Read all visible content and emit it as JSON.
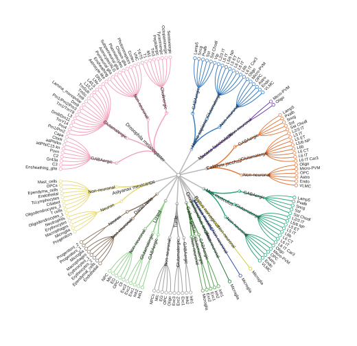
{
  "tree": {
    "clades": [
      {
        "name": "Homo sapiens",
        "color": "#3b7dc4",
        "groups": [
          {
            "name": "GABAergic",
            "leaves": [
              "Lamp5",
              "Sncg",
              "Pvalb",
              "Sst",
              "Sst Chodl",
              "Vip"
            ]
          },
          {
            "name": "Glutamatergic",
            "leaves": [
              "L2/3 IT",
              "L5 IT",
              "L5/6 NP",
              "L5 ET",
              "L6 CT",
              "L6 IT",
              "L6b",
              "L6 IT Car3"
            ]
          },
          {
            "name": "Non-neuronal",
            "leaves": [
              "Oligo",
              "Micro-PVM",
              "OPC",
              "Astro",
              "Endo",
              "VLMC"
            ]
          }
        ]
      },
      {
        "name": "Macaca fascicularis",
        "color": "#6b3fa2",
        "groups": [
          {
            "name": "Non-neuronal",
            "leaves": [
              "Micro-PVM",
              "Oligo"
            ]
          }
        ]
      },
      {
        "name": "Callithrix jacchus",
        "color": "#e27a3e",
        "groups": [
          {
            "name": "GABAergic",
            "leaves": [
              "Lamp5",
              "Pvalb",
              "Sncg",
              "Sst",
              "Sst Chodl"
            ]
          },
          {
            "name": "Glutamatergic",
            "leaves": [
              "L2/3 IT",
              "L5 IT",
              "L5 ET",
              "L5/6 NP",
              "L6b",
              "L6 CT",
              "L6 IT",
              "L6 IT Car3"
            ]
          },
          {
            "name": "Non-neuronal",
            "leaves": [
              "Oligo",
              "Micro-PVM",
              "OPC",
              "Astro",
              "Endo",
              "VLMC"
            ]
          }
        ]
      },
      {
        "name": "Mus musculus",
        "color": "#2ba77b",
        "groups": [
          {
            "name": "GABAergic",
            "leaves": [
              "Lamp5",
              "Pvalb",
              "Sncg",
              "Sst",
              "Sst Chodl"
            ]
          },
          {
            "name": "Glutamatergic",
            "leaves": [
              "L2/3 IT",
              "L5/6 NP",
              "L5 ET",
              "L5 IT",
              "L6b",
              "L6 CT",
              "L6 IT",
              "L6 IT Car3"
            ]
          },
          {
            "name": "Non-neuronal",
            "leaves": [
              "Oligo",
              "Micro-PVM",
              "OPC",
              "Astro",
              "Endo",
              "VLMC"
            ]
          }
        ]
      },
      {
        "name": "Rattus norvegicus",
        "color": "#cfcf2e",
        "groups": [
          {
            "name": "Non-neuronal",
            "leaves": [
              "Microglia"
            ]
          }
        ]
      },
      {
        "name": "Macaca mulatta",
        "color": "#2d4ea8",
        "groups": [
          {
            "name": "Non-neuronal",
            "leaves": [
              "Microglia"
            ]
          }
        ]
      },
      {
        "name": "Ornithorhynchus anatinus",
        "color": "#1e7a3b",
        "groups": [
          {
            "name": "Non-neuronal",
            "leaves": [
              "Microglia"
            ]
          }
        ]
      },
      {
        "name": "Gallus gallus",
        "color": "#55a04f",
        "groups": [
          {
            "name": "GABAergic",
            "leaves": [
              "Inh1",
              "Inh2"
            ]
          },
          {
            "name": "Glutamatergic",
            "leaves": [
              "Exc1",
              "Exc2"
            ]
          },
          {
            "name": "Non-neuronal",
            "leaves": [
              "Microglia"
            ]
          }
        ]
      },
      {
        "name": "Turtle",
        "color": "#a0a0a0",
        "groups": [
          {
            "name": "GABAergic",
            "leaves": [
              "Inh1",
              "Inh2"
            ]
          },
          {
            "name": "Glutamatergic",
            "leaves": [
              "Exc1",
              "Exc2",
              "Exc3"
            ]
          },
          {
            "name": "Non-neuronal",
            "leaves": [
              "Oligo",
              "OPC",
              "EG",
              "Mic",
              "NPCs"
            ]
          }
        ]
      },
      {
        "name": "Lizard",
        "color": "#92d08e",
        "groups": [
          {
            "name": "GABAergic",
            "leaves": [
              "Inh1",
              "Inh2"
            ]
          },
          {
            "name": "Glutamatergic",
            "leaves": [
              "Exc1",
              "Exc2",
              "Exc3"
            ]
          },
          {
            "name": "Non-neuronal",
            "leaves": [
              "Ol",
              "OPC",
              "EG",
              "Mic",
              "NPC"
            ]
          }
        ]
      },
      {
        "name": "Danio rerio",
        "color": "#8c7762",
        "groups": [
          {
            "name": "Non-neuronal",
            "leaves": [
              "Endothelial",
              "Ependymal_cells",
              "Erythrocytes_2",
              "Erythrocytes_1",
              "Macrophages",
              "Microglia"
            ]
          },
          {
            "name": "Neuron",
            "leaves": [
              "Progenitors_1",
              "Progenitors_2"
            ]
          }
        ]
      },
      {
        "name": "Astyanax mexicanus",
        "color": "#e8dc7c",
        "groups": [
          {
            "name": "Neuron",
            "leaves": [
              "Progenitors",
              "Microglia",
              "Macrophages",
              "Erythrocytes",
              "Neutrophils"
            ]
          },
          {
            "name": "Non-neuronal",
            "leaves": [
              "Oligodendrocytes_1",
              "T cells",
              "Oligodendrocytes_2",
              "Ciliated",
              "TcLymphocytes",
              "Endothelial",
              "Ependyma_cells",
              "OPCs",
              "Mast_cells"
            ]
          }
        ]
      },
      {
        "name": "Drosophila melanogaster",
        "color": "#f2a4bb",
        "groups": [
          {
            "name": "GABAergic",
            "leaves": [
              "Ensheathing_glia",
              "C3",
              "Gr43a",
              "C2",
              "Poxn",
              "adPN/C15 kn",
              "adPN/kn",
              "Clock",
              "Capa"
            ]
          },
          {
            "name": "Glutamatergic",
            "leaves": [
              "Pm1/Pm2",
              "Pm4",
              "TmY14",
              "Dm8/Dm11",
              "L3",
              "Tm1/TmY8",
              "Pm1/Pm2/Pm3",
              "Dm9",
              "Lamina_monopolar",
              "Tm9",
              "Tm5c",
              "TmSub",
              "L1/L2",
              "L4/L5",
              "LNv",
              "DN1"
            ]
          },
          {
            "name": "Non-neuronal",
            "leaves": [
              "Astrocyte-like",
              "Ensheathing",
              "Perineurial glia",
              "Astrocytes/ALG",
              "Subperineurial glia",
              "Plasmatocytes",
              "Chiasm glia",
              "Photoreceptors",
              "Cortex",
              "VNC"
            ]
          },
          {
            "name": "Cholinergic",
            "leaves": [
              "T4/T5",
              "T1",
              "Mi1",
              "Tm3",
              "Peptidergic",
              "Tyraminergic",
              "Octopaminergic",
              "Serotonergic"
            ]
          }
        ]
      }
    ]
  }
}
